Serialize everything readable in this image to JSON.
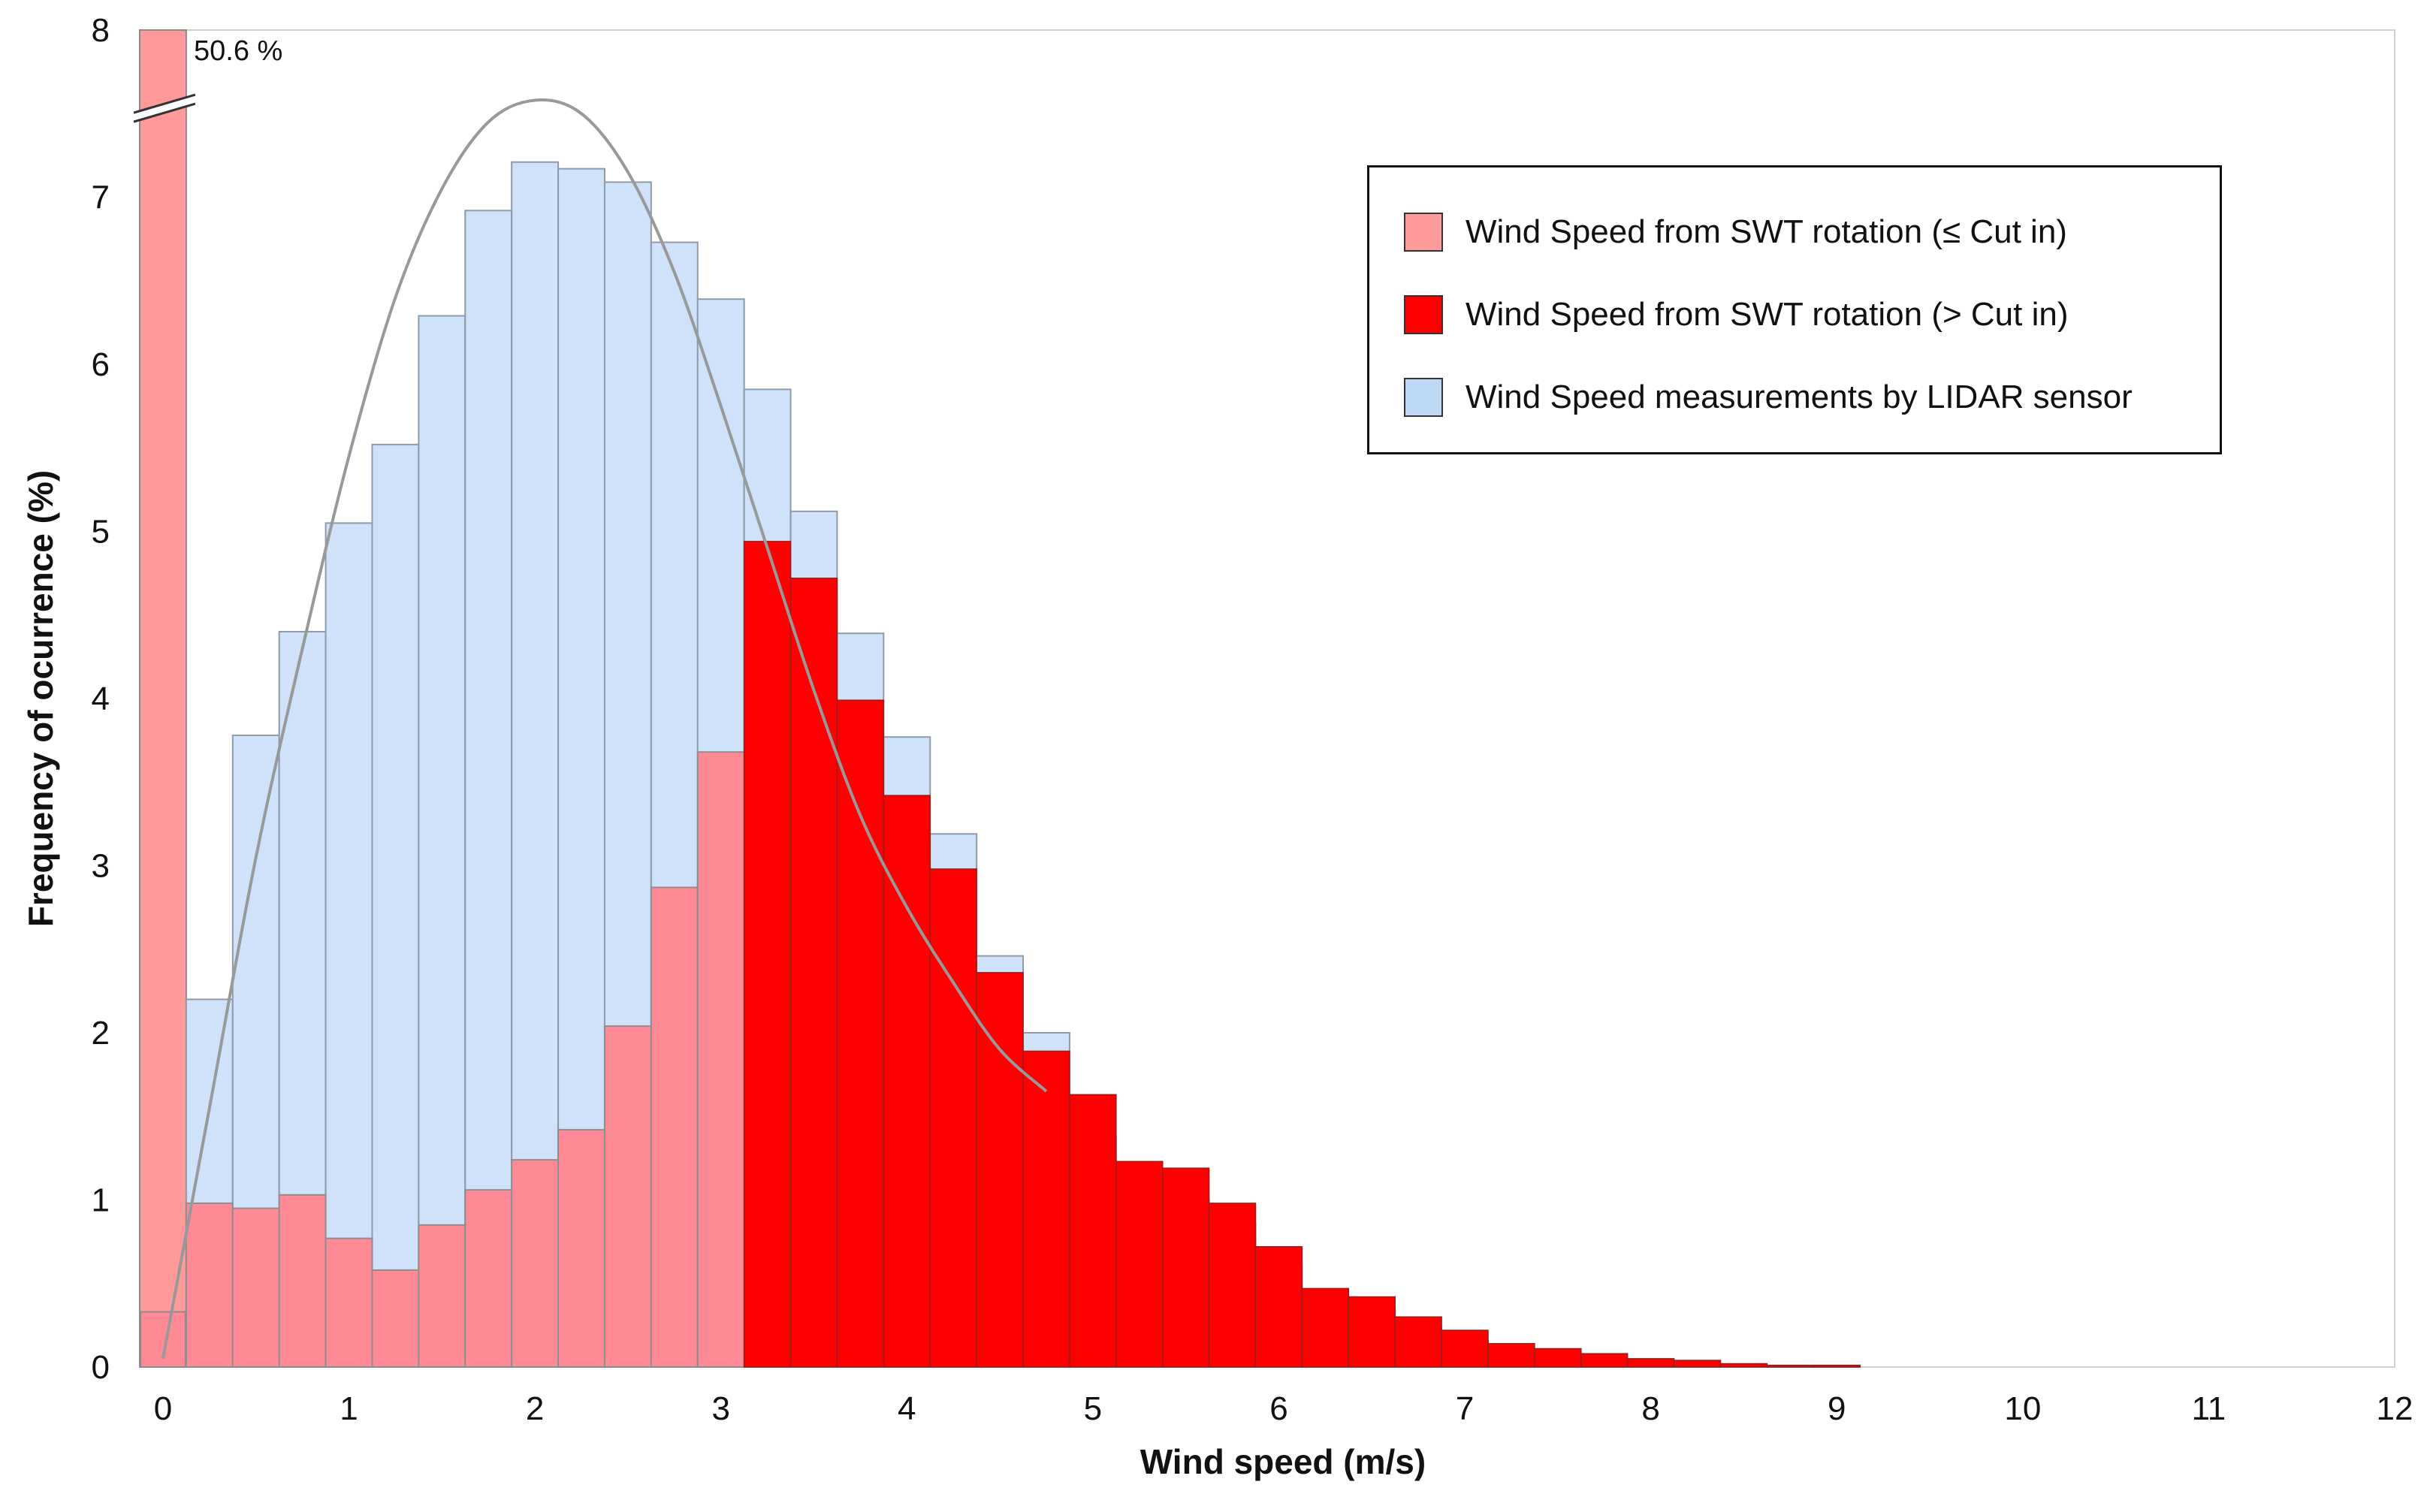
{
  "chart_data": {
    "type": "bar",
    "title": "",
    "xlabel": "Wind speed (m/s)",
    "ylabel": "Frequency of ocurrence (%)",
    "xlim": [
      -0.125,
      12
    ],
    "ylim": [
      0,
      8
    ],
    "bin_width": 0.25,
    "x_ticks": [
      0,
      1,
      2,
      3,
      4,
      5,
      6,
      7,
      8,
      9,
      10,
      11,
      12
    ],
    "y_ticks": [
      0,
      1,
      2,
      3,
      4,
      5,
      6,
      7,
      8
    ],
    "annotation": "50.6 %",
    "zero_bin": {
      "x": 0,
      "value": 50.6,
      "display_value": 8,
      "lidar_value": 0.33
    },
    "bins_x": [
      0.25,
      0.5,
      0.75,
      1.0,
      1.25,
      1.5,
      1.75,
      2.0,
      2.25,
      2.5,
      2.75,
      3.0,
      3.25,
      3.5,
      3.75,
      4.0,
      4.25,
      4.5,
      4.75,
      5.0,
      5.25,
      5.5,
      5.75,
      6.0,
      6.25,
      6.5,
      6.75,
      7.0,
      7.25,
      7.5,
      7.75,
      8.0,
      8.25,
      8.5,
      8.75,
      9.0
    ],
    "series": [
      {
        "name": "Wind Speed measurements by LIDAR sensor",
        "color": "#cfe2f9",
        "values": [
          2.2,
          3.78,
          4.4,
          5.05,
          5.52,
          6.29,
          6.92,
          7.21,
          7.17,
          7.09,
          6.73,
          6.39,
          5.85,
          5.12,
          4.39,
          3.77,
          3.19,
          2.46,
          2.0,
          1.38,
          1.08,
          1.01,
          0.86,
          0.62,
          0.42,
          0.35,
          0.24,
          0.16,
          0.1,
          0.06,
          0.04,
          0.03,
          0.02,
          0.01,
          0.01,
          0.01
        ]
      },
      {
        "name": "Wind Speed from SWT rotation (≤ Cut in)",
        "color": "#ff8a96",
        "values": [
          0.98,
          0.95,
          1.03,
          0.77,
          0.58,
          0.85,
          1.06,
          1.24,
          1.42,
          2.04,
          2.87,
          3.68,
          0,
          0,
          0,
          0,
          0,
          0,
          0,
          0,
          0,
          0,
          0,
          0,
          0,
          0,
          0,
          0,
          0,
          0,
          0,
          0,
          0,
          0,
          0,
          0
        ]
      },
      {
        "name": "Wind Speed from SWT rotation (> Cut in)",
        "color": "#ff0000",
        "values": [
          0,
          0,
          0,
          0,
          0,
          0,
          0,
          0,
          0,
          0,
          0,
          0,
          4.94,
          4.72,
          3.99,
          3.42,
          2.98,
          2.36,
          1.89,
          1.63,
          1.23,
          1.19,
          0.98,
          0.72,
          0.47,
          0.42,
          0.3,
          0.22,
          0.14,
          0.11,
          0.08,
          0.05,
          0.04,
          0.02,
          0.01,
          0.01
        ]
      }
    ],
    "fit_curve": {
      "name": "Fitted distribution",
      "color": "#999999",
      "x": [
        0,
        0.25,
        0.5,
        0.75,
        1.0,
        1.25,
        1.5,
        1.75,
        2.0,
        2.25,
        2.5,
        2.75,
        3.0,
        3.25,
        3.5,
        3.75,
        4.0,
        4.25,
        4.5,
        4.75
      ],
      "y": [
        0.05,
        1.55,
        3.05,
        4.3,
        5.45,
        6.4,
        7.05,
        7.45,
        7.58,
        7.5,
        7.15,
        6.55,
        5.75,
        4.9,
        4.05,
        3.3,
        2.75,
        2.3,
        1.9,
        1.65
      ]
    },
    "legend": {
      "position": "top-right",
      "items": [
        {
          "label": "Wind Speed from SWT rotation (≤ Cut in)",
          "color": "#ff9a9a"
        },
        {
          "label": "Wind Speed from SWT rotation (> Cut in)",
          "color": "#ff0000"
        },
        {
          "label": "Wind Speed measurements by LIDAR sensor",
          "color": "#bcd8f5"
        }
      ]
    }
  }
}
